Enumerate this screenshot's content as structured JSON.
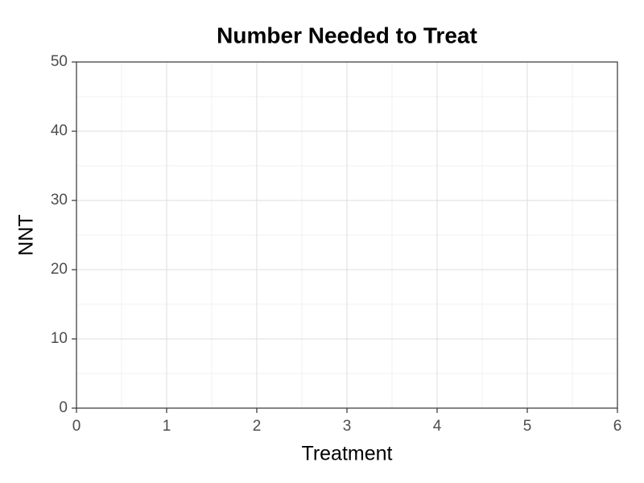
{
  "chart_data": {
    "type": "scatter",
    "title": "Number Needed to Treat",
    "xlabel": "Treatment",
    "ylabel": "NNT",
    "xlim": [
      0,
      6
    ],
    "xticks": [
      0,
      1,
      2,
      3,
      4,
      5,
      6
    ],
    "ylim": [
      0,
      50
    ],
    "yticks": [
      0,
      10,
      20,
      30,
      40,
      50
    ],
    "grid": true
  }
}
